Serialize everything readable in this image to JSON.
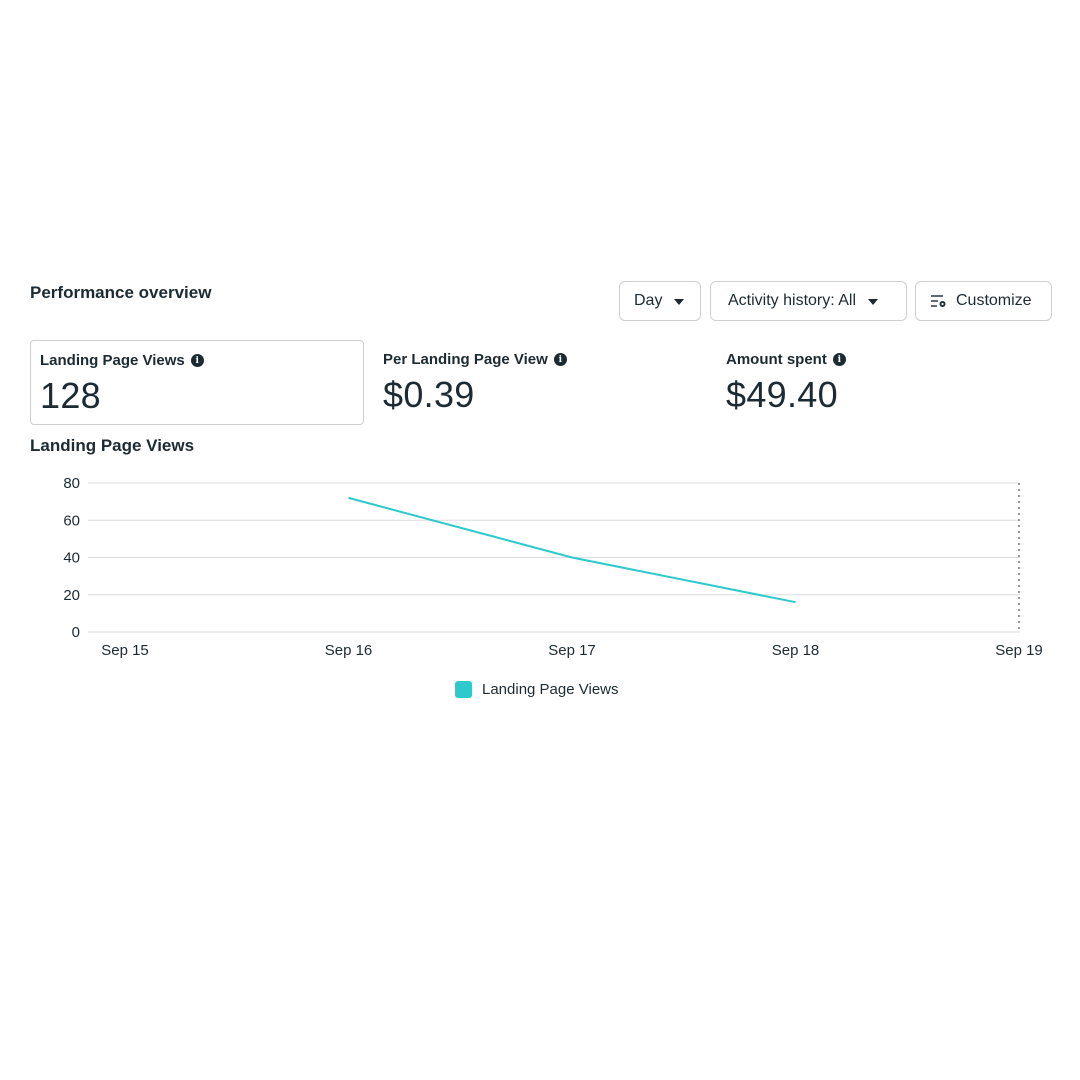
{
  "header": {
    "title": "Performance overview",
    "day_label": "Day",
    "activity_label": "Activity history: All",
    "customize_label": "Customize"
  },
  "metrics": [
    {
      "label": "Landing Page Views",
      "value": "128",
      "selected": true
    },
    {
      "label": "Per Landing Page View",
      "value": "$0.39",
      "selected": false
    },
    {
      "label": "Amount spent",
      "value": "$49.40",
      "selected": false
    }
  ],
  "icons": {
    "info": "info-icon",
    "caret": "caret-down-icon",
    "customize": "customize-settings-icon"
  },
  "colors": {
    "series": "#2ccacb",
    "grid": "#dadde1",
    "text": "#1c2b33"
  },
  "chart_data": {
    "type": "line",
    "title": "Landing Page Views",
    "categories": [
      "Sep 15",
      "Sep 16",
      "Sep 17",
      "Sep 18",
      "Sep 19"
    ],
    "series": [
      {
        "name": "Landing Page Views",
        "values": [
          null,
          72,
          40,
          16,
          null
        ]
      }
    ],
    "yticks": [
      0,
      20,
      40,
      60,
      80
    ],
    "ylim": [
      0,
      80
    ],
    "grid": true,
    "legend": "bottom-center",
    "today_marker": "Sep 19"
  }
}
